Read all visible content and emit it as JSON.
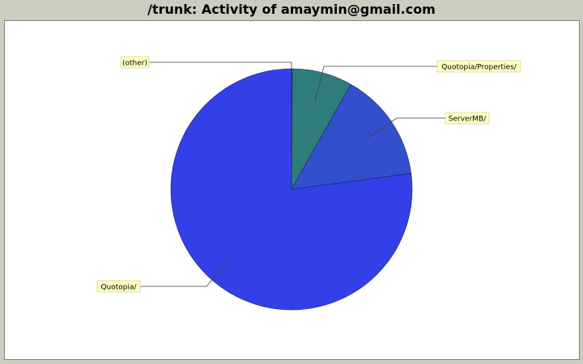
{
  "chart_data": {
    "type": "pie",
    "title": "/trunk: Activity of amaymin@gmail.com",
    "slices": [
      {
        "label": "(other)",
        "value": 0.1
      },
      {
        "label": "Quotopia/Properties/",
        "value": 8.1
      },
      {
        "label": "ServerMB/",
        "value": 14.7
      },
      {
        "label": "Quotopia/",
        "value": 77.1
      }
    ],
    "colors": [
      "#3c8c8c",
      "#2f7c7c",
      "#3350cc",
      "#3340e8"
    ],
    "legend": "callout-labels"
  }
}
